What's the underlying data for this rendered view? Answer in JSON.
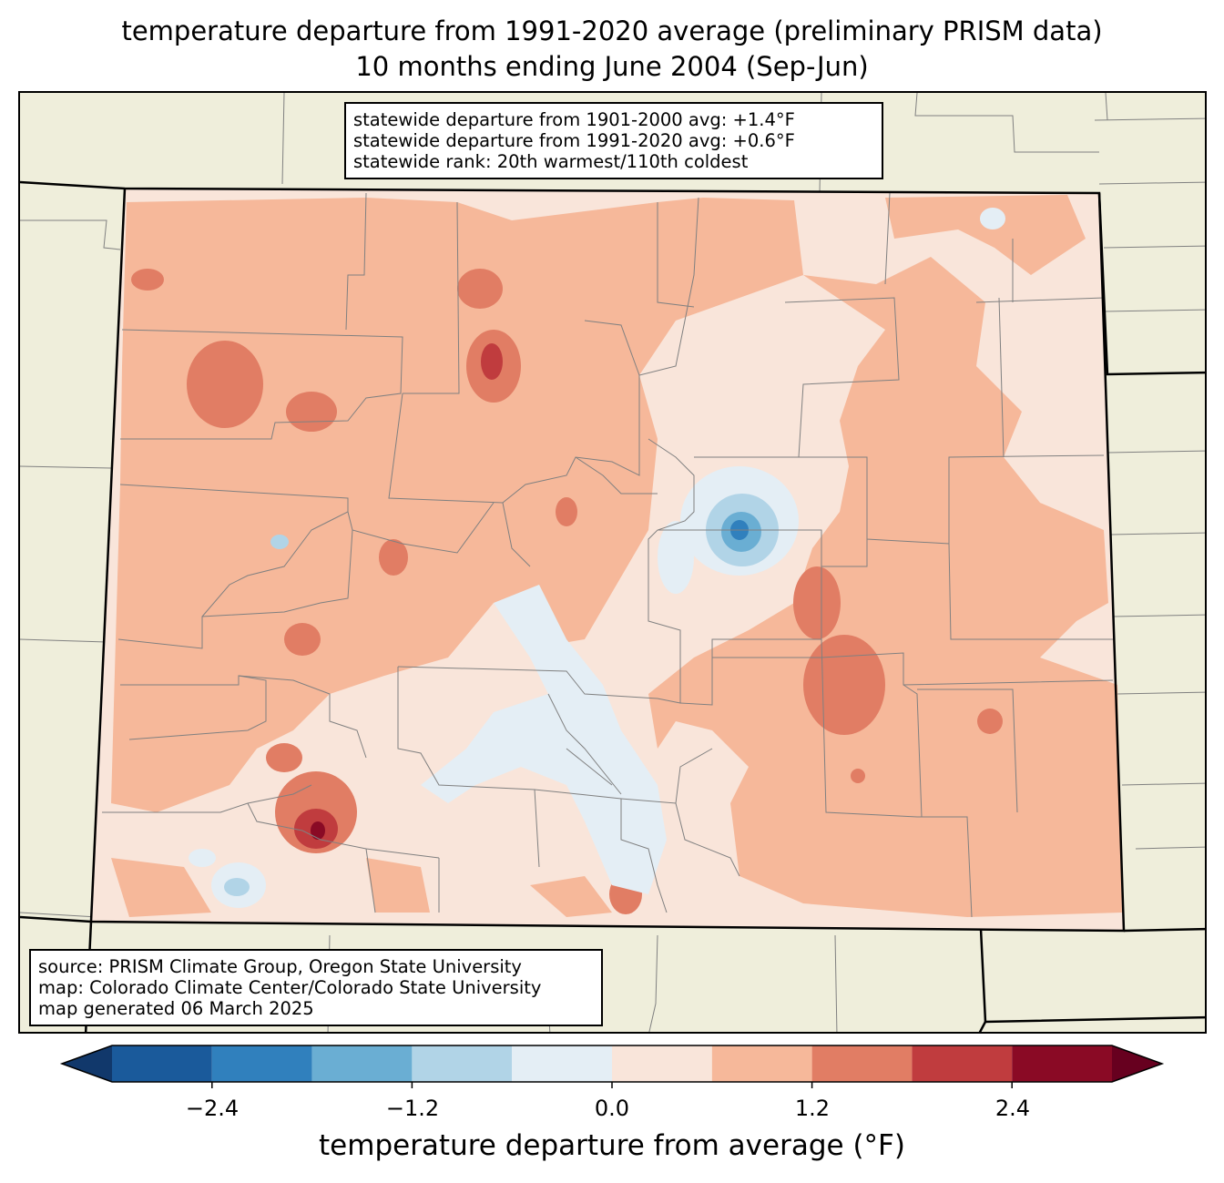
{
  "title": {
    "line1": "temperature departure from 1991-2020 average (preliminary PRISM data)",
    "line2": "10 months ending June 2004 (Sep-Jun)"
  },
  "stats_box": {
    "line1": "statewide departure from 1901-2000 avg: +1.4°F",
    "line2": "statewide departure from 1991-2020 avg: +0.6°F",
    "line3": "statewide rank: 20th warmest/110th coldest"
  },
  "source_box": {
    "line1": "source: PRISM Climate Group, Oregon State University",
    "line2": "map: Colorado Climate Center/Colorado State University",
    "line3": "map generated 06 March 2025"
  },
  "colorbar": {
    "label": "temperature departure from average (°F)",
    "ticks": [
      "−2.4",
      "−1.2",
      "0.0",
      "1.2",
      "2.4"
    ],
    "tick_values": [
      -2.4,
      -1.2,
      0.0,
      1.2,
      2.4
    ],
    "bins": [
      -3.0,
      -2.4,
      -1.8,
      -1.2,
      -0.6,
      0.0,
      0.6,
      1.2,
      1.8,
      2.4,
      3.0
    ],
    "colors": [
      "#11386b",
      "#1a5a9b",
      "#3080bd",
      "#6aaed3",
      "#b1d4e7",
      "#e4eef5",
      "#f9e5da",
      "#f6b89a",
      "#e17d64",
      "#c03c3e",
      "#8a0a25",
      "#67001f"
    ]
  },
  "colors": {
    "background_land": "#efeedb",
    "county_lines": "#808080",
    "state_lines": "#000000"
  }
}
